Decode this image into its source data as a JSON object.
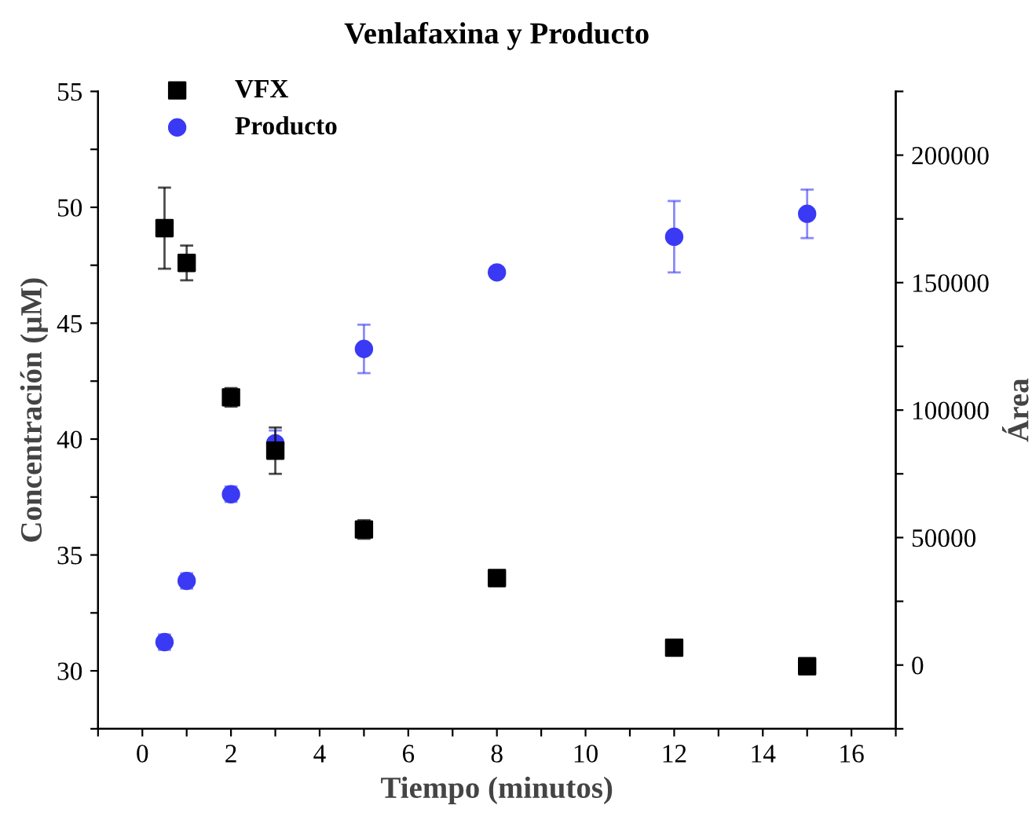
{
  "chart_data": {
    "type": "scatter",
    "title": "Venlafaxina y Producto",
    "xlabel": "Tiempo (minutos)",
    "ylabel": "Concentración (µM)",
    "y2label": "Área",
    "xlim": [
      -1,
      17
    ],
    "xticks": [
      {
        "value": -1,
        "label": null
      },
      0,
      {
        "value": 1,
        "label": null
      },
      2,
      {
        "value": 3,
        "label": null
      },
      4,
      {
        "value": 5,
        "label": null
      },
      6,
      {
        "value": 7,
        "label": null
      },
      8,
      {
        "value": 9,
        "label": null
      },
      10,
      {
        "value": 11,
        "label": null
      },
      12,
      {
        "value": 13,
        "label": null
      },
      14,
      {
        "value": 15,
        "label": null
      },
      16,
      {
        "value": 17,
        "label": null
      }
    ],
    "ylim": [
      27.5,
      55
    ],
    "yticks": [
      {
        "value": 27.5,
        "label": null
      },
      30,
      {
        "value": 32.5,
        "label": null
      },
      35,
      {
        "value": 37.5,
        "label": null
      },
      40,
      {
        "value": 42.5,
        "label": null
      },
      45,
      {
        "value": 47.5,
        "label": null
      },
      50,
      {
        "value": 52.5,
        "label": null
      },
      55
    ],
    "y2lim": [
      -25000,
      225000
    ],
    "y2ticks": [
      {
        "value": -25000,
        "label": null
      },
      0,
      {
        "value": 25000,
        "label": null
      },
      50000,
      {
        "value": 75000,
        "label": null
      },
      100000,
      {
        "value": 125000,
        "label": null
      },
      150000,
      {
        "value": 175000,
        "label": null
      },
      200000,
      {
        "value": 225000,
        "label": null
      }
    ],
    "grid": false,
    "legend": "top left",
    "series": [
      {
        "name": "VFX",
        "color": "#000000",
        "marker": "square",
        "x": [
          0.5,
          1,
          2,
          3,
          5,
          8,
          12,
          15
        ],
        "values": [
          49.1,
          47.6,
          41.8,
          39.5,
          36.1,
          34.0,
          31.0,
          30.2
        ],
        "errors": [
          1.75,
          0.75,
          0.4,
          1.0,
          0.4,
          0.3,
          null,
          0.3
        ]
      },
      {
        "name": "Producto",
        "color": "#3a3af5",
        "marker": "circle",
        "axis": "y2",
        "x": [
          0.5,
          1,
          2,
          3,
          5,
          8,
          12,
          15
        ],
        "values": [
          9000,
          33000,
          67000,
          87000,
          124000,
          154000,
          168000,
          177000
        ],
        "errors": [
          3000,
          3000,
          3000,
          5000,
          9500,
          null,
          14000,
          9500
        ]
      }
    ]
  }
}
